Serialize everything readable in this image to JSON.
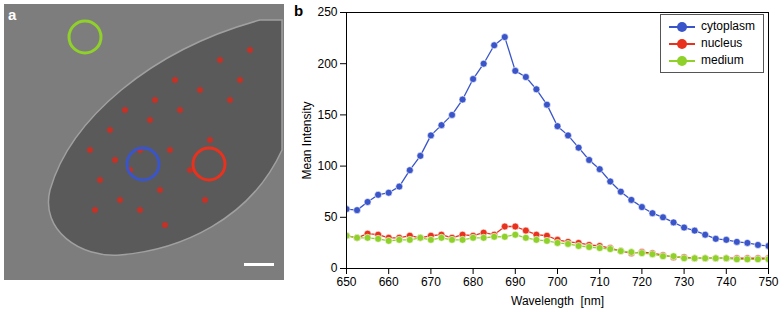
{
  "chart_data": {
    "type": "line",
    "annotations": [
      "a",
      "b"
    ],
    "x_label": "Wavelength  [nm]",
    "y_label": "Mean Intensity",
    "x": [
      650,
      652.5,
      655,
      657.5,
      660,
      662.5,
      665,
      667.5,
      670,
      672.5,
      675,
      677.5,
      680,
      682.5,
      685,
      687.5,
      690,
      692.5,
      695,
      697.5,
      700,
      702.5,
      705,
      707.5,
      710,
      712.5,
      715,
      717.5,
      720,
      722.5,
      725,
      727.5,
      730,
      732.5,
      735,
      737.5,
      740,
      742.5,
      745,
      747.5,
      750
    ],
    "series": [
      {
        "name": "cytoplasm",
        "color": "#3a55c9",
        "marker": "circle",
        "values": [
          58,
          57,
          65,
          72,
          74,
          80,
          96,
          110,
          130,
          140,
          150,
          165,
          185,
          200,
          218,
          226,
          193,
          187,
          175,
          160,
          139,
          130,
          118,
          106,
          97,
          85,
          75,
          67,
          60,
          54,
          50,
          45,
          40,
          37,
          33,
          29,
          28,
          26,
          25,
          23,
          22
        ]
      },
      {
        "name": "nucleus",
        "color": "#e8321e",
        "marker": "circle",
        "values": [
          32,
          30,
          34,
          33,
          30,
          30,
          32,
          30,
          32,
          33,
          30,
          33,
          32,
          35,
          33,
          41,
          41,
          37,
          33,
          32,
          28,
          26,
          25,
          23,
          22,
          20,
          17,
          15,
          16,
          15,
          13,
          11,
          11,
          10,
          10,
          10,
          10,
          10,
          10,
          10,
          10
        ]
      },
      {
        "name": "medium",
        "color": "#8fd12a",
        "marker": "circle",
        "values": [
          32,
          30,
          30,
          29,
          27,
          28,
          28,
          30,
          28,
          30,
          28,
          28,
          30,
          30,
          31,
          31,
          33,
          30,
          28,
          27,
          25,
          24,
          22,
          21,
          20,
          19,
          17,
          16,
          15,
          14,
          12,
          12,
          10,
          10,
          10,
          10,
          10,
          9,
          9,
          9,
          9
        ]
      }
    ],
    "xlim": [
      650,
      750
    ],
    "xticks": [
      650,
      660,
      670,
      680,
      690,
      700,
      710,
      720,
      730,
      740,
      750
    ],
    "ylim": [
      0,
      250
    ],
    "yticks": [
      0,
      50,
      100,
      150,
      200,
      250
    ],
    "legend": "top-right",
    "grid": false
  }
}
